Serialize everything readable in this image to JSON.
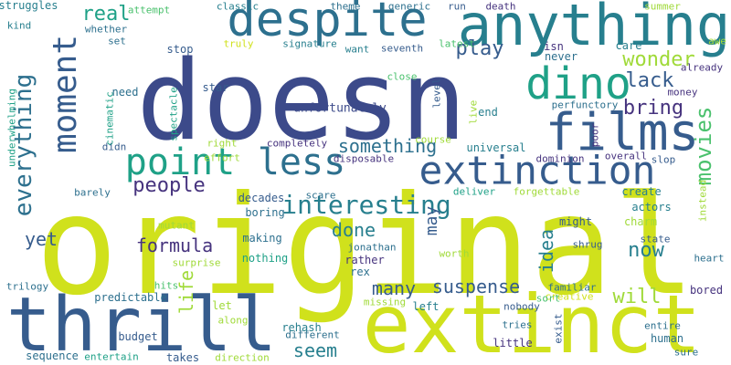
{
  "colors": {
    "background": "#ffffff",
    "navy": "#3c4a8a",
    "indigo": "#46337e",
    "blue": "#365c8d",
    "teal_blue": "#2d708e",
    "teal": "#277f8e",
    "cyan": "#1fa187",
    "green": "#4ac16d",
    "lime": "#a0da39",
    "yellow": "#d0e11c"
  },
  "words": {
    "doesn": "doesn",
    "original": "original",
    "thrill": "thrill",
    "extinct": "extinct",
    "anything": "anything",
    "despite": "despite",
    "films": "films",
    "dino": "dino",
    "extinction": "extinction",
    "point": "point",
    "less": "less",
    "moment": "moment",
    "interesting": "interesting",
    "something": "something",
    "movies": "movies",
    "everything": "everything",
    "people": "people",
    "play": "play",
    "wonder": "wonder",
    "lack": "lack",
    "bring": "bring",
    "real": "real",
    "formula": "formula",
    "yet": "yet",
    "done": "done",
    "now": "now",
    "will": "will",
    "suspense": "suspense",
    "many": "many",
    "seem": "seem",
    "idea": "idea",
    "may": "may",
    "life": "life",
    "unfortunately": "unfortunately",
    "struggles": "struggles",
    "attempt": "attempt",
    "classic": "classic",
    "theme": "theme",
    "generic": "generic",
    "run": "run",
    "death": "death",
    "summer": "summer",
    "kind": "kind",
    "whether": "whether",
    "set": "set",
    "truly": "truly",
    "signature": "signature",
    "want": "want",
    "seventh": "seventh",
    "latest": "latest",
    "isn": "isn",
    "care": "care",
    "awe": "awe",
    "stop": "stop",
    "never": "never",
    "already": "already",
    "star": "star",
    "need": "need",
    "close": "close",
    "level": "level",
    "money": "money",
    "perfunctory": "perfunctory",
    "end": "end",
    "live": "live",
    "spectacle": "spectacle",
    "cinematic": "cinematic",
    "underwhelming": "underwhelming",
    "course": "course",
    "universal": "universal",
    "completely": "completely",
    "right": "right",
    "didn": "didn",
    "effort": "effort",
    "disposable": "disposable",
    "dominion": "dominion",
    "poor": "poor",
    "overall": "overall",
    "slop": "slop",
    "barely": "barely",
    "scare": "scare",
    "deliver": "deliver",
    "forgettable": "forgettable",
    "create": "create",
    "instead": "instead",
    "decades": "decades",
    "actors": "actors",
    "boring": "boring",
    "charm": "charm",
    "mutant": "mutant",
    "might": "might",
    "jonathan": "jonathan",
    "making": "making",
    "state": "state",
    "shrug": "shrug",
    "worth": "worth",
    "nothing": "nothing",
    "surprise": "surprise",
    "heart": "heart",
    "rather": "rather",
    "trilogy": "trilogy",
    "rex": "rex",
    "hits": "hits",
    "familiar": "familiar",
    "bored": "bored",
    "creative": "creative",
    "predictable": "predictable",
    "missing": "missing",
    "left": "left",
    "sort": "sort",
    "let": "let",
    "nobody": "nobody",
    "exist": "exist",
    "rehash": "rehash",
    "entire": "entire",
    "along": "along",
    "tries": "tries",
    "different": "different",
    "human": "human",
    "budget": "budget",
    "little": "little",
    "sequence": "sequence",
    "entertain": "entertain",
    "takes": "takes",
    "direction": "direction",
    "sure": "sure"
  }
}
